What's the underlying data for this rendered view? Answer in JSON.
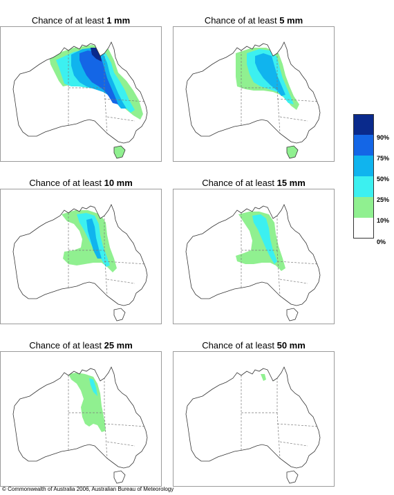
{
  "panels": [
    {
      "prefix": "Chance of at least ",
      "value": "1 mm",
      "level": 6
    },
    {
      "prefix": "Chance of at least ",
      "value": "5 mm",
      "level": 5
    },
    {
      "prefix": "Chance of at least ",
      "value": "10 mm",
      "level": 4
    },
    {
      "prefix": "Chance of at least ",
      "value": "15 mm",
      "level": 3
    },
    {
      "prefix": "Chance of at least ",
      "value": "25 mm",
      "level": 2
    },
    {
      "prefix": "Chance of at least ",
      "value": "50 mm",
      "level": 1
    }
  ],
  "legend": {
    "labels": [
      "90%",
      "75%",
      "50%",
      "25%",
      "10%",
      "0%"
    ],
    "colors": [
      "#0a2a8c",
      "#1466e6",
      "#10b4ee",
      "#3cf0f0",
      "#90f090",
      "#ffffff"
    ]
  },
  "copyright": "© Commonwealth of Australia 2006, Australian Bureau of Meteorology"
}
